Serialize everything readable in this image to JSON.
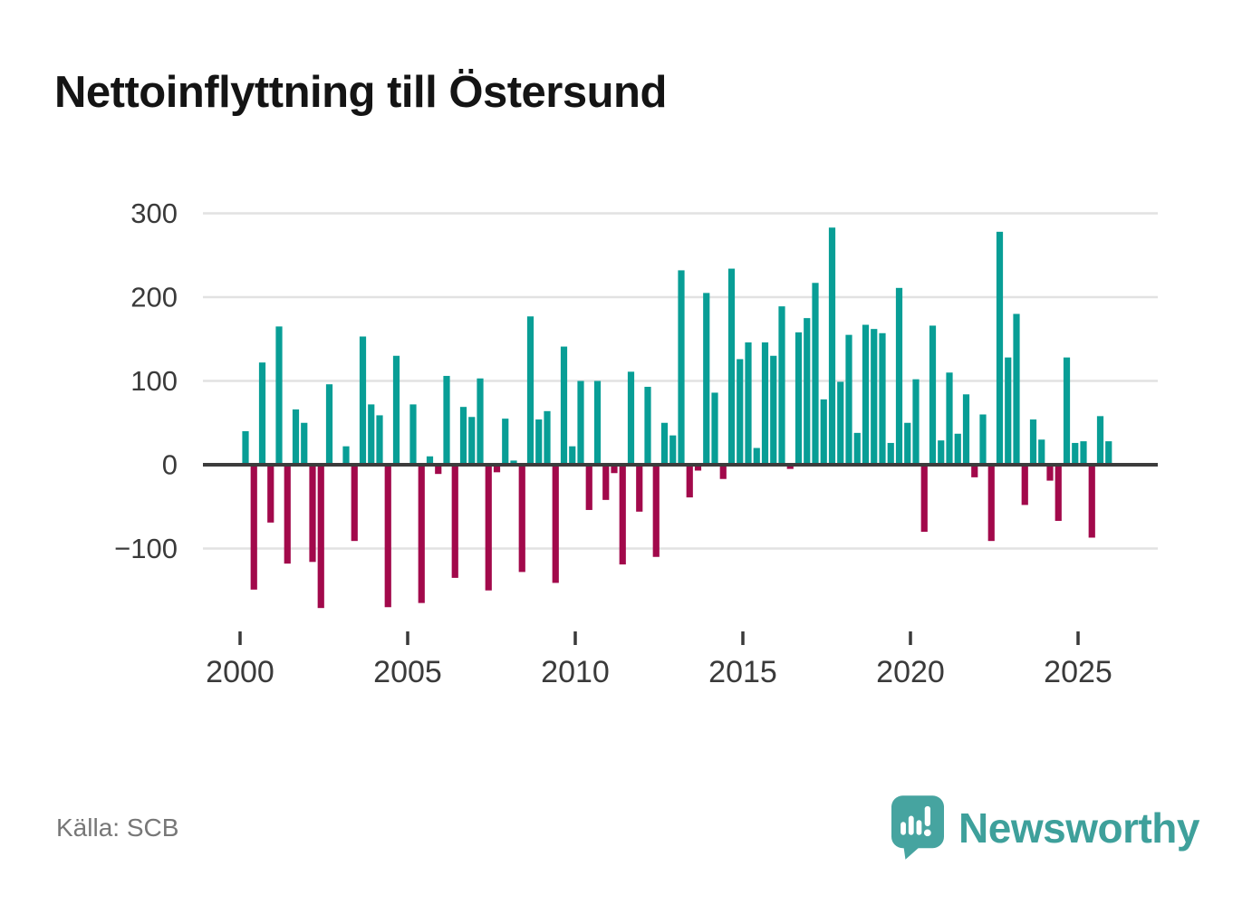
{
  "title": "Nettoinflyttning till Östersund",
  "source": "Källa: SCB",
  "logo": {
    "text": "Newsworthy",
    "bubble_color": "#46A4A0",
    "text_color": "#3EA09B"
  },
  "chart_data": {
    "type": "bar",
    "title": "Nettoinflyttning till Östersund",
    "xlabel": "",
    "ylabel": "",
    "ylim": [
      -185,
      310
    ],
    "grid": "horizontal",
    "colors": {
      "positive": "#089E96",
      "negative": "#A2094B",
      "grid": "#E2E2E2",
      "zero_line": "#3C3C3C",
      "axis_text": "#3A3A3A"
    },
    "y_ticks": [
      {
        "label": "300",
        "value": 300
      },
      {
        "label": "200",
        "value": 200
      },
      {
        "label": "100",
        "value": 100
      },
      {
        "label": "0",
        "value": 0
      },
      {
        "label": "−100",
        "value": -100
      }
    ],
    "x_ticks": [
      {
        "label": "2000",
        "year": 2000
      },
      {
        "label": "2005",
        "year": 2005
      },
      {
        "label": "2010",
        "year": 2010
      },
      {
        "label": "2015",
        "year": 2015
      },
      {
        "label": "2020",
        "year": 2020
      },
      {
        "label": "2025",
        "year": 2025
      }
    ],
    "series": [
      {
        "quarter": "2000Q1",
        "value": 40
      },
      {
        "quarter": "2000Q2",
        "value": -149
      },
      {
        "quarter": "2000Q3",
        "value": 122
      },
      {
        "quarter": "2000Q4",
        "value": -69
      },
      {
        "quarter": "2001Q1",
        "value": 165
      },
      {
        "quarter": "2001Q2",
        "value": -118
      },
      {
        "quarter": "2001Q3",
        "value": 66
      },
      {
        "quarter": "2001Q4",
        "value": 50
      },
      {
        "quarter": "2002Q1",
        "value": -116
      },
      {
        "quarter": "2002Q2",
        "value": -171
      },
      {
        "quarter": "2002Q3",
        "value": 96
      },
      {
        "quarter": "2002Q4",
        "value": 2
      },
      {
        "quarter": "2003Q1",
        "value": 22
      },
      {
        "quarter": "2003Q2",
        "value": -91
      },
      {
        "quarter": "2003Q3",
        "value": 153
      },
      {
        "quarter": "2003Q4",
        "value": 72
      },
      {
        "quarter": "2004Q1",
        "value": 59
      },
      {
        "quarter": "2004Q2",
        "value": -170
      },
      {
        "quarter": "2004Q3",
        "value": 130
      },
      {
        "quarter": "2004Q4",
        "value": 2
      },
      {
        "quarter": "2005Q1",
        "value": 72
      },
      {
        "quarter": "2005Q2",
        "value": -165
      },
      {
        "quarter": "2005Q3",
        "value": 10
      },
      {
        "quarter": "2005Q4",
        "value": -11
      },
      {
        "quarter": "2006Q1",
        "value": 106
      },
      {
        "quarter": "2006Q2",
        "value": -135
      },
      {
        "quarter": "2006Q3",
        "value": 69
      },
      {
        "quarter": "2006Q4",
        "value": 57
      },
      {
        "quarter": "2007Q1",
        "value": 103
      },
      {
        "quarter": "2007Q2",
        "value": -150
      },
      {
        "quarter": "2007Q3",
        "value": -9
      },
      {
        "quarter": "2007Q4",
        "value": 55
      },
      {
        "quarter": "2008Q1",
        "value": 5
      },
      {
        "quarter": "2008Q2",
        "value": -128
      },
      {
        "quarter": "2008Q3",
        "value": 177
      },
      {
        "quarter": "2008Q4",
        "value": 54
      },
      {
        "quarter": "2009Q1",
        "value": 64
      },
      {
        "quarter": "2009Q2",
        "value": -141
      },
      {
        "quarter": "2009Q3",
        "value": 141
      },
      {
        "quarter": "2009Q4",
        "value": 22
      },
      {
        "quarter": "2010Q1",
        "value": 100
      },
      {
        "quarter": "2010Q2",
        "value": -54
      },
      {
        "quarter": "2010Q3",
        "value": 100
      },
      {
        "quarter": "2010Q4",
        "value": -42
      },
      {
        "quarter": "2011Q1",
        "value": -10
      },
      {
        "quarter": "2011Q2",
        "value": -119
      },
      {
        "quarter": "2011Q3",
        "value": 111
      },
      {
        "quarter": "2011Q4",
        "value": -56
      },
      {
        "quarter": "2012Q1",
        "value": 93
      },
      {
        "quarter": "2012Q2",
        "value": -110
      },
      {
        "quarter": "2012Q3",
        "value": 50
      },
      {
        "quarter": "2012Q4",
        "value": 35
      },
      {
        "quarter": "2013Q1",
        "value": 232
      },
      {
        "quarter": "2013Q2",
        "value": -39
      },
      {
        "quarter": "2013Q3",
        "value": -7
      },
      {
        "quarter": "2013Q4",
        "value": 205
      },
      {
        "quarter": "2014Q1",
        "value": 86
      },
      {
        "quarter": "2014Q2",
        "value": -17
      },
      {
        "quarter": "2014Q3",
        "value": 234
      },
      {
        "quarter": "2014Q4",
        "value": 126
      },
      {
        "quarter": "2015Q1",
        "value": 146
      },
      {
        "quarter": "2015Q2",
        "value": 20
      },
      {
        "quarter": "2015Q3",
        "value": 146
      },
      {
        "quarter": "2015Q4",
        "value": 130
      },
      {
        "quarter": "2016Q1",
        "value": 189
      },
      {
        "quarter": "2016Q2",
        "value": -5
      },
      {
        "quarter": "2016Q3",
        "value": 158
      },
      {
        "quarter": "2016Q4",
        "value": 175
      },
      {
        "quarter": "2017Q1",
        "value": 217
      },
      {
        "quarter": "2017Q2",
        "value": 78
      },
      {
        "quarter": "2017Q3",
        "value": 283
      },
      {
        "quarter": "2017Q4",
        "value": 99
      },
      {
        "quarter": "2018Q1",
        "value": 155
      },
      {
        "quarter": "2018Q2",
        "value": 38
      },
      {
        "quarter": "2018Q3",
        "value": 167
      },
      {
        "quarter": "2018Q4",
        "value": 162
      },
      {
        "quarter": "2019Q1",
        "value": 157
      },
      {
        "quarter": "2019Q2",
        "value": 26
      },
      {
        "quarter": "2019Q3",
        "value": 211
      },
      {
        "quarter": "2019Q4",
        "value": 50
      },
      {
        "quarter": "2020Q1",
        "value": 102
      },
      {
        "quarter": "2020Q2",
        "value": -80
      },
      {
        "quarter": "2020Q3",
        "value": 166
      },
      {
        "quarter": "2020Q4",
        "value": 29
      },
      {
        "quarter": "2021Q1",
        "value": 110
      },
      {
        "quarter": "2021Q2",
        "value": 37
      },
      {
        "quarter": "2021Q3",
        "value": 84
      },
      {
        "quarter": "2021Q4",
        "value": -15
      },
      {
        "quarter": "2022Q1",
        "value": 60
      },
      {
        "quarter": "2022Q2",
        "value": -91
      },
      {
        "quarter": "2022Q3",
        "value": 278
      },
      {
        "quarter": "2022Q4",
        "value": 128
      },
      {
        "quarter": "2023Q1",
        "value": 180
      },
      {
        "quarter": "2023Q2",
        "value": -48
      },
      {
        "quarter": "2023Q3",
        "value": 54
      },
      {
        "quarter": "2023Q4",
        "value": 30
      },
      {
        "quarter": "2024Q1",
        "value": -19
      },
      {
        "quarter": "2024Q2",
        "value": -67
      },
      {
        "quarter": "2024Q3",
        "value": 128
      },
      {
        "quarter": "2024Q4",
        "value": 26
      },
      {
        "quarter": "2025Q1",
        "value": 28
      },
      {
        "quarter": "2025Q2",
        "value": -87
      },
      {
        "quarter": "2025Q3",
        "value": 58
      },
      {
        "quarter": "2025Q4",
        "value": 28
      }
    ]
  }
}
